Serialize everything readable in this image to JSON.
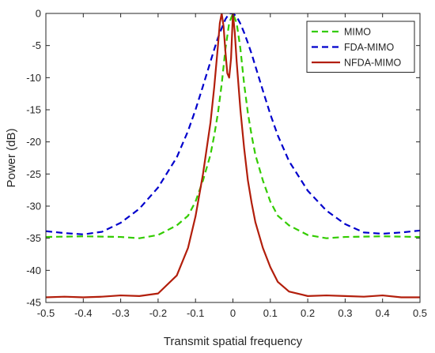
{
  "chart_data": {
    "type": "line",
    "title": "",
    "xlabel": "Transmit spatial frequency",
    "ylabel": "Power (dB)",
    "xlim": [
      -0.5,
      0.5
    ],
    "ylim": [
      -45,
      0
    ],
    "xticks": [
      -0.5,
      -0.4,
      -0.3,
      -0.2,
      -0.1,
      0,
      0.1,
      0.2,
      0.3,
      0.4,
      0.5
    ],
    "xtick_labels": [
      "-0.5",
      "-0.4",
      "-0.3",
      "-0.2",
      "-0.1",
      "0",
      "0.1",
      "0.2",
      "0.3",
      "0.4",
      "0.5"
    ],
    "yticks": [
      0,
      -5,
      -10,
      -15,
      -20,
      -25,
      -30,
      -35,
      -40,
      -45
    ],
    "ytick_labels": [
      "0",
      "-5",
      "-10",
      "-15",
      "-20",
      "-25",
      "-30",
      "-35",
      "-40",
      "-45"
    ],
    "grid": false,
    "legend_position": "top-right",
    "series": [
      {
        "name": "MIMO",
        "color": "#33cc00",
        "dash": "dashed",
        "x": [
          -0.5,
          -0.4,
          -0.3,
          -0.25,
          -0.2,
          -0.15,
          -0.12,
          -0.1,
          -0.08,
          -0.06,
          -0.05,
          -0.04,
          -0.03,
          -0.02,
          -0.01,
          0,
          0.01,
          0.02,
          0.03,
          0.04,
          0.05,
          0.06,
          0.08,
          0.1,
          0.12,
          0.15,
          0.2,
          0.25,
          0.3,
          0.4,
          0.5
        ],
        "values": [
          -34.8,
          -34.7,
          -34.8,
          -35.0,
          -34.5,
          -33.0,
          -31.5,
          -29.3,
          -26.0,
          -22.0,
          -19.0,
          -15.5,
          -11.0,
          -5.5,
          -1.5,
          0.0,
          -1.5,
          -5.5,
          -11.0,
          -15.5,
          -19.0,
          -22.0,
          -26.0,
          -29.3,
          -31.5,
          -33.0,
          -34.5,
          -35.0,
          -34.8,
          -34.7,
          -34.8
        ]
      },
      {
        "name": "FDA-MIMO",
        "color": "#0000cc",
        "dash": "dashed",
        "x": [
          -0.5,
          -0.45,
          -0.4,
          -0.35,
          -0.3,
          -0.25,
          -0.2,
          -0.15,
          -0.12,
          -0.1,
          -0.08,
          -0.06,
          -0.05,
          -0.04,
          -0.03,
          -0.02,
          -0.01,
          0,
          0.01,
          0.02,
          0.03,
          0.04,
          0.05,
          0.06,
          0.08,
          0.1,
          0.12,
          0.15,
          0.2,
          0.25,
          0.3,
          0.35,
          0.4,
          0.45,
          0.5
        ],
        "values": [
          -33.9,
          -34.2,
          -34.4,
          -34.0,
          -32.6,
          -30.4,
          -27.1,
          -22.4,
          -18.3,
          -15.0,
          -11.3,
          -7.5,
          -5.6,
          -3.8,
          -2.3,
          -0.9,
          0.0,
          0.0,
          -0.5,
          -1.6,
          -3.0,
          -4.6,
          -6.3,
          -8.2,
          -12.0,
          -15.7,
          -19.0,
          -23.0,
          -27.6,
          -30.7,
          -32.8,
          -34.1,
          -34.3,
          -34.1,
          -33.8
        ]
      },
      {
        "name": "NFDA-MIMO",
        "color": "#b21e0b",
        "dash": "solid",
        "x": [
          -0.5,
          -0.45,
          -0.4,
          -0.35,
          -0.3,
          -0.25,
          -0.2,
          -0.15,
          -0.12,
          -0.1,
          -0.08,
          -0.06,
          -0.05,
          -0.04,
          -0.035,
          -0.03,
          -0.025,
          -0.02,
          -0.015,
          -0.01,
          -0.005,
          0,
          0.005,
          0.01,
          0.02,
          0.03,
          0.04,
          0.05,
          0.06,
          0.08,
          0.1,
          0.12,
          0.15,
          0.2,
          0.25,
          0.3,
          0.35,
          0.4,
          0.45,
          0.5
        ],
        "values": [
          -44.2,
          -44.1,
          -44.2,
          -44.1,
          -43.9,
          -44.0,
          -43.6,
          -40.8,
          -36.5,
          -31.6,
          -25.0,
          -17.0,
          -11.5,
          -5.0,
          -1.5,
          0.0,
          -2.0,
          -6.0,
          -9.3,
          -10.0,
          -7.0,
          0.0,
          -3.0,
          -7.5,
          -15.0,
          -21.0,
          -26.0,
          -29.5,
          -32.5,
          -36.5,
          -39.5,
          -41.8,
          -43.3,
          -44.0,
          -43.9,
          -44.0,
          -44.1,
          -43.9,
          -44.2,
          -44.2
        ]
      }
    ]
  }
}
